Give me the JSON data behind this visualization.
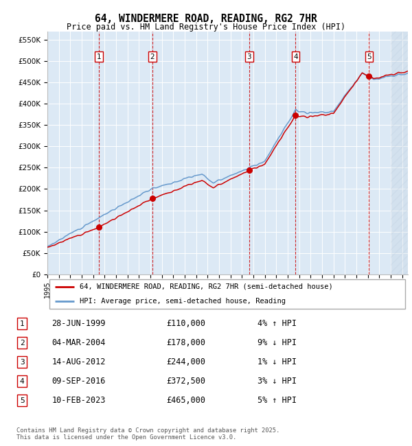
{
  "title": "64, WINDERMERE ROAD, READING, RG2 7HR",
  "subtitle": "Price paid vs. HM Land Registry's House Price Index (HPI)",
  "plot_bg_color": "#dce9f5",
  "yticks": [
    0,
    50000,
    100000,
    150000,
    200000,
    250000,
    300000,
    350000,
    400000,
    450000,
    500000,
    550000
  ],
  "ytick_labels": [
    "£0",
    "£50K",
    "£100K",
    "£150K",
    "£200K",
    "£250K",
    "£300K",
    "£350K",
    "£400K",
    "£450K",
    "£500K",
    "£550K"
  ],
  "xmin": 1995.0,
  "xmax": 2026.5,
  "ymin": 0,
  "ymax": 570000,
  "hpi_color": "#6699cc",
  "price_color": "#cc0000",
  "sale_marker_color": "#cc0000",
  "vline_color": "#cc0000",
  "transactions": [
    {
      "num": 1,
      "date_str": "28-JUN-1999",
      "year": 1999.49,
      "price": 110000,
      "hpi_pct": 4,
      "direction": "↑"
    },
    {
      "num": 2,
      "date_str": "04-MAR-2004",
      "year": 2004.17,
      "price": 178000,
      "hpi_pct": 9,
      "direction": "↓"
    },
    {
      "num": 3,
      "date_str": "14-AUG-2012",
      "year": 2012.62,
      "price": 244000,
      "hpi_pct": 1,
      "direction": "↓"
    },
    {
      "num": 4,
      "date_str": "09-SEP-2016",
      "year": 2016.69,
      "price": 372500,
      "hpi_pct": 3,
      "direction": "↓"
    },
    {
      "num": 5,
      "date_str": "10-FEB-2023",
      "year": 2023.11,
      "price": 465000,
      "hpi_pct": 5,
      "direction": "↑"
    }
  ],
  "legend_line1": "64, WINDERMERE ROAD, READING, RG2 7HR (semi-detached house)",
  "legend_line2": "HPI: Average price, semi-detached house, Reading",
  "footer": "Contains HM Land Registry data © Crown copyright and database right 2025.\nThis data is licensed under the Open Government Licence v3.0.",
  "xticks": [
    1995,
    1996,
    1997,
    1998,
    1999,
    2000,
    2001,
    2002,
    2003,
    2004,
    2005,
    2006,
    2007,
    2008,
    2009,
    2010,
    2011,
    2012,
    2013,
    2014,
    2015,
    2016,
    2017,
    2018,
    2019,
    2020,
    2021,
    2022,
    2023,
    2024,
    2025,
    2026
  ],
  "hpi_breakpoints": [
    [
      1995.0,
      65000
    ],
    [
      2004.0,
      200000
    ],
    [
      2008.5,
      235000
    ],
    [
      2009.5,
      215000
    ],
    [
      2014.0,
      265000
    ],
    [
      2016.7,
      385000
    ],
    [
      2018.0,
      378000
    ],
    [
      2020.0,
      382000
    ],
    [
      2022.5,
      472000
    ],
    [
      2023.5,
      458000
    ],
    [
      2026.5,
      470000
    ]
  ]
}
